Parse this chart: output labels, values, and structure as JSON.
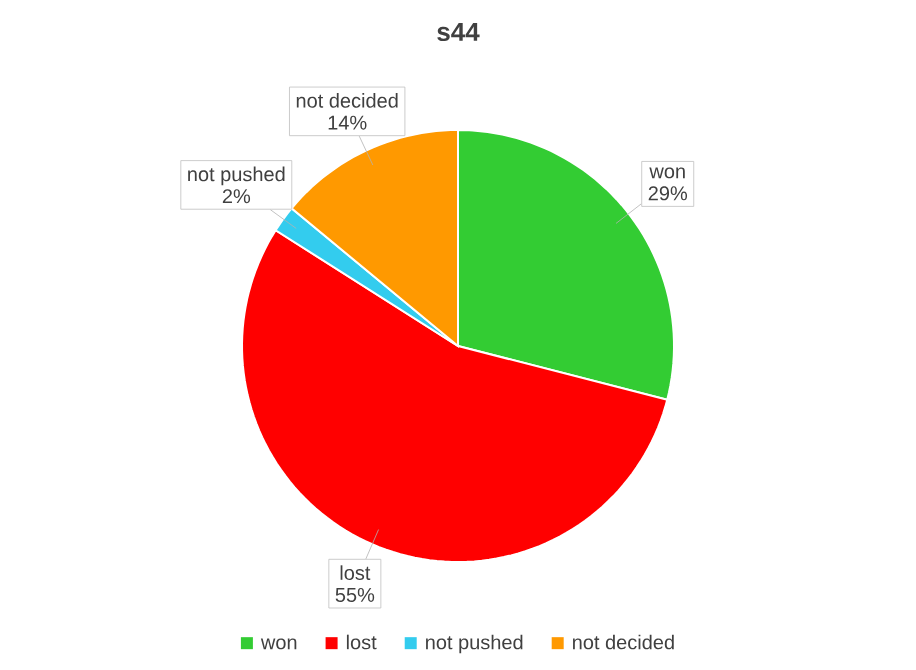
{
  "chart_data": {
    "type": "pie",
    "title": "s44",
    "categories": [
      "won",
      "lost",
      "not pushed",
      "not decided"
    ],
    "values": [
      29,
      55,
      2,
      14
    ],
    "value_labels": [
      "29%",
      "55%",
      "2%",
      "14%"
    ],
    "colors": [
      "#33cc33",
      "#ff0000",
      "#33ccee",
      "#ff9900"
    ],
    "legend": "bottom"
  }
}
